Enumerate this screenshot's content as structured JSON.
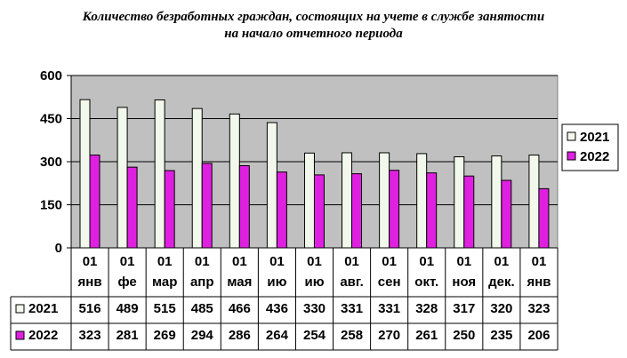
{
  "chart_data": {
    "type": "bar",
    "title_lines": [
      "Количество безработных граждан, состоящих на учете в службе занятости",
      "на начало отчетного периода"
    ],
    "categories": [
      [
        "01",
        "янв"
      ],
      [
        "01",
        "фе"
      ],
      [
        "01",
        "мар"
      ],
      [
        "01",
        "апр"
      ],
      [
        "01",
        "мая"
      ],
      [
        "01",
        "ию"
      ],
      [
        "01",
        "ию"
      ],
      [
        "01",
        "авг."
      ],
      [
        "01",
        "сен"
      ],
      [
        "01",
        "окт."
      ],
      [
        "01",
        "ноя"
      ],
      [
        "01",
        "дек."
      ],
      [
        "01",
        "янв"
      ]
    ],
    "series": [
      {
        "name": "2021",
        "color": "#f2f8ec",
        "values": [
          516,
          489,
          515,
          485,
          466,
          436,
          330,
          331,
          331,
          328,
          317,
          320,
          323
        ]
      },
      {
        "name": "2022",
        "color": "#e020e0",
        "values": [
          323,
          281,
          269,
          294,
          286,
          264,
          254,
          258,
          270,
          261,
          250,
          235,
          206
        ]
      }
    ],
    "ylim": [
      0,
      600
    ],
    "yticks": [
      "0",
      "150",
      "300",
      "450",
      "600"
    ],
    "grid": true,
    "legend_position": "right",
    "plot_background": "#c0c0c0",
    "xlabel": "",
    "ylabel": ""
  }
}
